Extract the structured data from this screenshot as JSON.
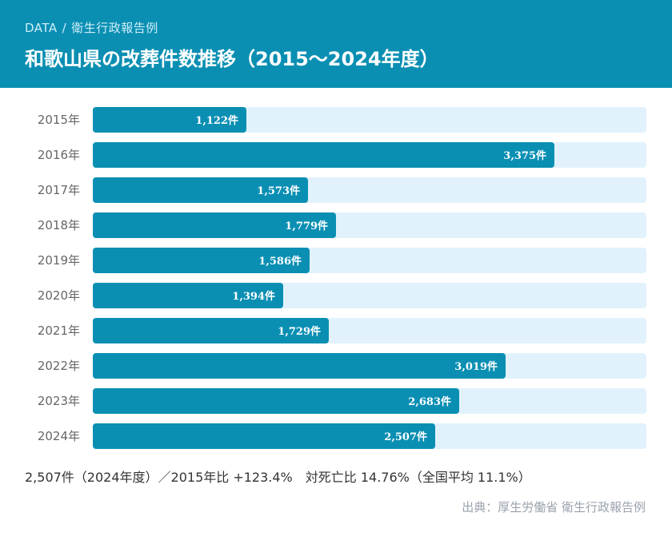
{
  "header": {
    "crumb_data": "DATA",
    "crumb_sep": "/",
    "crumb_category": "衛生行政報告例",
    "title": "和歌山県の改葬件数推移（2015〜2024年度）"
  },
  "colors": {
    "header_bg": "#0a8fb3",
    "bar": "#0a8fb3",
    "track": "#e1f2fc"
  },
  "chart_data": {
    "type": "bar",
    "orientation": "horizontal",
    "title": "和歌山県の改葬件数推移（2015〜2024年度）",
    "categories": [
      "2015年",
      "2016年",
      "2017年",
      "2018年",
      "2019年",
      "2020年",
      "2021年",
      "2022年",
      "2023年",
      "2024年"
    ],
    "values": [
      1122,
      3375,
      1573,
      1779,
      1586,
      1394,
      1729,
      3019,
      2683,
      2507
    ],
    "value_labels": [
      "1,122件",
      "3,375件",
      "1,573件",
      "1,779件",
      "1,586件",
      "1,394件",
      "1,729件",
      "3,019件",
      "2,683件",
      "2,507件"
    ],
    "xlim": [
      0,
      4050
    ],
    "unit": "件"
  },
  "summary": "2,507件（2024年度）／2015年比 +123.4%　対死亡比 14.76%（全国平均 11.1%）",
  "source": "出典：厚生労働省 衛生行政報告例"
}
